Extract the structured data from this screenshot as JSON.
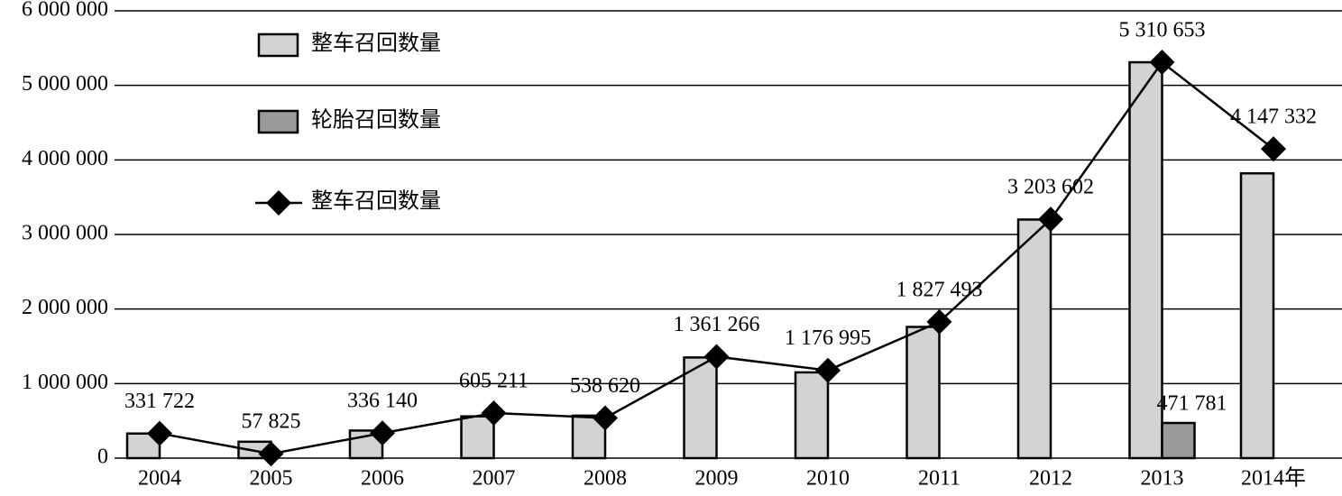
{
  "chart_data": {
    "type": "bar",
    "categories": [
      "2004",
      "2005",
      "2006",
      "2007",
      "2008",
      "2009",
      "2010",
      "2011",
      "2012",
      "2013",
      "2014年"
    ],
    "series": [
      {
        "name": "整车召回数量",
        "type": "bar",
        "color": "#d3d3d3",
        "values": [
          330000,
          220000,
          370000,
          560000,
          570000,
          1350000,
          1150000,
          1760000,
          3200000,
          5310000,
          3820000
        ]
      },
      {
        "name": "轮胎召回数量",
        "type": "bar",
        "color": "#9a9a9a",
        "values": [
          null,
          null,
          null,
          null,
          null,
          null,
          null,
          null,
          null,
          471781,
          null
        ],
        "value_labels": [
          null,
          null,
          null,
          null,
          null,
          null,
          null,
          null,
          null,
          "471 781",
          null
        ]
      },
      {
        "name": "整车召回数量",
        "type": "line",
        "color": "#000000",
        "values": [
          331722,
          57825,
          336140,
          605211,
          538620,
          1361266,
          1176995,
          1827493,
          3203602,
          5310653,
          4147332
        ],
        "value_labels": [
          "331 722",
          "57 825",
          "336 140",
          "605 211",
          "538 620",
          "1 361 266",
          "1 176 995",
          "1 827 493",
          "3 203 602",
          "5 310 653",
          "4 147 332"
        ]
      }
    ],
    "ylim": [
      0,
      6000000
    ],
    "yticks": [
      0,
      {
        "value": 1000000,
        "label": "1 000 000"
      },
      {
        "value": 2000000,
        "label": "2 000 000"
      },
      {
        "value": 3000000,
        "label": "3 000 000"
      },
      {
        "value": 4000000,
        "label": "4 000 000"
      },
      {
        "value": 5000000,
        "label": "5 000 000"
      },
      {
        "value": 6000000,
        "label": "6 000 000"
      }
    ],
    "grid": true,
    "legend": "upper-left"
  }
}
